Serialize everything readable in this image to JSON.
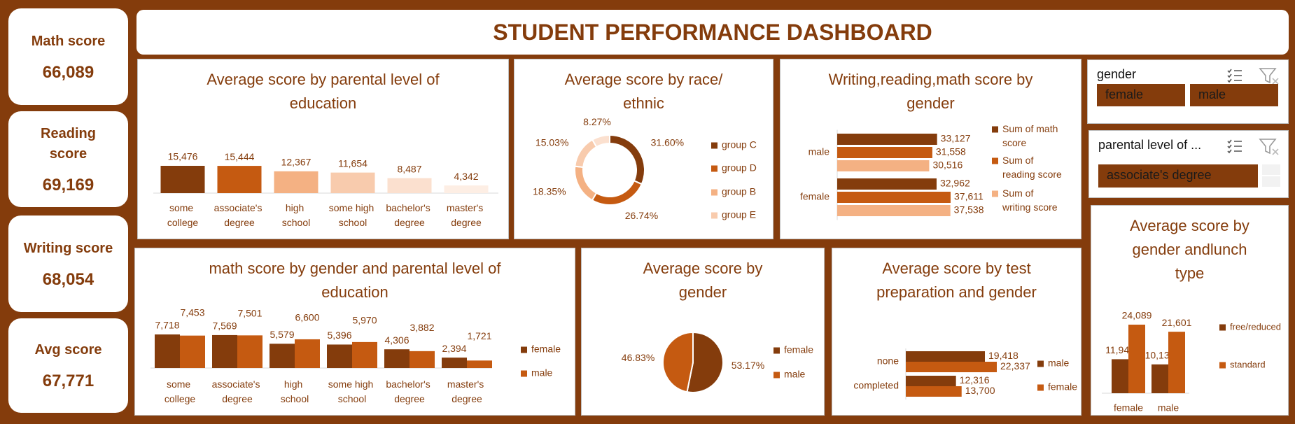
{
  "header": {
    "title": "STUDENT PERFORMANCE DASHBOARD"
  },
  "kpis": [
    {
      "label": "Math score",
      "value": "66,089"
    },
    {
      "label": "Reading score",
      "value": "69,169"
    },
    {
      "label": "Writing score",
      "value": "68,054"
    },
    {
      "label": "Avg score",
      "value": "67,771"
    }
  ],
  "slicers": [
    {
      "title": "gender",
      "items": [
        "female",
        "male"
      ]
    },
    {
      "title": "parental level of ...",
      "items": [
        "associate's degree"
      ]
    }
  ],
  "chart_data": [
    {
      "type": "bar",
      "title": "Average score by parental level of education",
      "categories": [
        "some college",
        "associate's degree",
        "high school",
        "some high school",
        "bachelor's degree",
        "master's degree"
      ],
      "values": [
        15476,
        15444,
        12367,
        11654,
        8487,
        4342
      ],
      "value_labels": [
        "15,476",
        "15,444",
        "12,367",
        "11,654",
        "8,487",
        "4,342"
      ],
      "colors": [
        "#843c0c",
        "#c55a11",
        "#f4b183",
        "#f8cbad",
        "#fbe0cf",
        "#fdeee4"
      ]
    },
    {
      "type": "doughnut",
      "title": "Average score by race/ ethnic",
      "categories": [
        "group C",
        "group D",
        "group B",
        "group E",
        null
      ],
      "values": [
        31.6,
        26.74,
        18.35,
        15.03,
        8.27
      ],
      "value_labels": [
        "31.60%",
        "26.74%",
        "18.35%",
        "15.03%",
        "8.27%"
      ],
      "colors": [
        "#843c0c",
        "#c55a11",
        "#f4b183",
        "#f8cbad",
        "#fbe0cf"
      ],
      "legend": "right"
    },
    {
      "type": "hbar",
      "title": "Writing,reading,math score by gender",
      "categories": [
        "male",
        "female"
      ],
      "series": [
        {
          "name": "Sum of math score",
          "color": "#843c0c",
          "values": [
            33127,
            32962
          ],
          "value_labels": [
            "33,127",
            "32,962"
          ]
        },
        {
          "name": "Sum of reading score",
          "color": "#c55a11",
          "values": [
            31558,
            37611
          ],
          "value_labels": [
            "31,558",
            "37,611"
          ]
        },
        {
          "name": "Sum of writing score",
          "color": "#f4b183",
          "values": [
            30516,
            37538
          ],
          "value_labels": [
            "30,516",
            "37,538"
          ]
        }
      ],
      "legend": "right"
    },
    {
      "type": "bar",
      "title": "math score by gender and parental level of education",
      "categories": [
        "some college",
        "associate's degree",
        "high school",
        "some high school",
        "bachelor's degree",
        "master's degree"
      ],
      "series": [
        {
          "name": "female",
          "color": "#843c0c",
          "values": [
            7718,
            7569,
            5579,
            5396,
            4306,
            2394
          ],
          "value_labels": [
            "7,718",
            "7,569",
            "5,579",
            "5,396",
            "4,306",
            "2,394"
          ]
        },
        {
          "name": "male",
          "color": "#c55a11",
          "values": [
            7453,
            7501,
            6600,
            5970,
            3882,
            1721
          ],
          "value_labels": [
            "7,453",
            "7,501",
            "6,600",
            "5,970",
            "3,882",
            "1,721"
          ]
        }
      ],
      "legend": "right"
    },
    {
      "type": "pie",
      "title": "Average score by gender",
      "categories": [
        "female",
        "male"
      ],
      "values": [
        53.17,
        46.83
      ],
      "value_labels": [
        "53.17%",
        "46.83%"
      ],
      "colors": [
        "#843c0c",
        "#c55a11"
      ],
      "legend": "right"
    },
    {
      "type": "hbar",
      "title": "Average score by test preparation and gender",
      "categories": [
        "none",
        "completed"
      ],
      "series": [
        {
          "name": "male",
          "color": "#843c0c",
          "values": [
            19418,
            12316
          ],
          "value_labels": [
            "19,418",
            "12,316"
          ]
        },
        {
          "name": "female",
          "color": "#c55a11",
          "values": [
            22337,
            13700
          ],
          "value_labels": [
            "22,337",
            "13,700"
          ]
        }
      ],
      "legend": "right"
    },
    {
      "type": "bar",
      "title": "Average score by gender andlunch type",
      "categories": [
        "female",
        "male"
      ],
      "series": [
        {
          "name": "free/reduced",
          "color": "#843c0c",
          "values": [
            11948,
            10133
          ],
          "value_labels": [
            "11,948",
            "10,133"
          ]
        },
        {
          "name": "standard",
          "color": "#c55a11",
          "values": [
            24089,
            21601
          ],
          "value_labels": [
            "24,089",
            "21,601"
          ]
        }
      ],
      "legend": "right"
    }
  ]
}
